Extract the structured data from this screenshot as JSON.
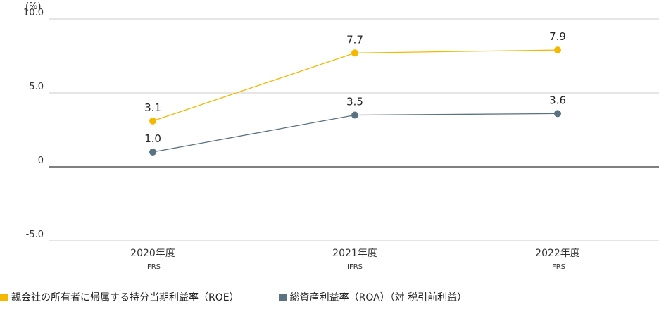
{
  "colors": {
    "roe": "#F5B800",
    "roa": "#5A7282",
    "grid": "#CCCCCC",
    "zero": "#333333"
  },
  "chart_data": {
    "type": "line",
    "unit_label": "(%)",
    "categories": [
      "2020年度",
      "2021年度",
      "2022年度"
    ],
    "category_sublabels": [
      "IFRS",
      "IFRS",
      "IFRS"
    ],
    "ylim": [
      -5.0,
      10.0
    ],
    "yticks": [
      -5.0,
      0,
      5.0,
      10.0
    ],
    "ytick_labels": [
      "-5.0",
      "0",
      "5.0",
      "10.0"
    ],
    "series": [
      {
        "name": "親会社の所有者に帰属する持分当期利益率（ROE）",
        "values": [
          3.1,
          7.7,
          7.9
        ],
        "labels": [
          "3.1",
          "7.7",
          "7.9"
        ]
      },
      {
        "name": "総資産利益率（ROA）（対 税引前利益）",
        "values": [
          1.0,
          3.5,
          3.6
        ],
        "labels": [
          "1.0",
          "3.5",
          "3.6"
        ]
      }
    ],
    "legend_position": "bottom-left",
    "grid": true
  }
}
